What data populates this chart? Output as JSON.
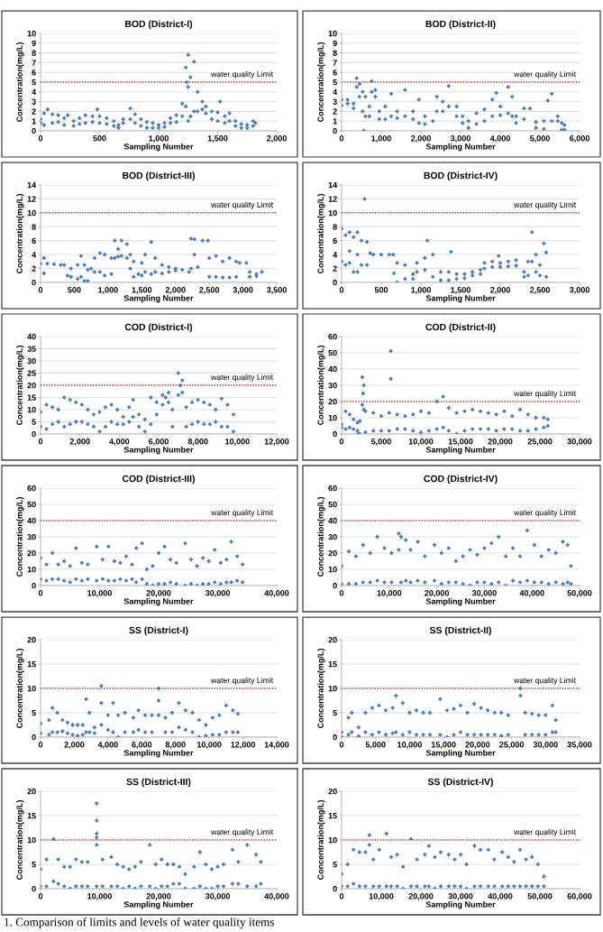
{
  "chart_data": [
    {
      "type": "scatter",
      "title": "BOD (District-I)",
      "xlabel": "Sampling Number",
      "ylabel": "Concentration(mg/L)",
      "color": "#4a7ebb",
      "marker": "diamond",
      "grid": "y",
      "xlim": [
        0,
        2000
      ],
      "xticks": [
        0,
        500,
        {
          "value": 1000,
          "label": "1,000"
        },
        {
          "value": 1500,
          "label": "1,500"
        },
        {
          "value": 2000,
          "label": "2,000"
        }
      ],
      "ylim": [
        0,
        10
      ],
      "yticks": [
        0,
        1,
        2,
        3,
        4,
        5,
        6,
        7,
        8,
        9,
        10
      ],
      "ref_lines": [
        {
          "axis": "y",
          "value": 5,
          "label": "water quality Limit",
          "color": "#c0504d",
          "line_style": "dotted"
        }
      ],
      "x": [
        0,
        0,
        30,
        30,
        100,
        100,
        150,
        150,
        200,
        200,
        280,
        280,
        330,
        330,
        380,
        380,
        440,
        440,
        500,
        500,
        560,
        560,
        620,
        620,
        660,
        660,
        700,
        700,
        760,
        760,
        800,
        800,
        850,
        850,
        900,
        900,
        950,
        950,
        1000,
        1000,
        1050,
        1050,
        1100,
        1100,
        1150,
        1150,
        1200,
        1200,
        1230,
        1230,
        1250,
        1250,
        1270,
        1270,
        1300,
        1300,
        1330,
        1330,
        1370,
        1370,
        1400,
        1400,
        1450,
        1450,
        1500,
        1500,
        1560,
        1560,
        1600,
        1600,
        1650,
        1650,
        1700,
        1700,
        1750,
        1750,
        1800,
        1800,
        60,
        230,
        480,
        1520,
        1820,
        1250,
        1240
      ],
      "values": [
        1.2,
        0.8,
        1.8,
        0.6,
        1.7,
        0.8,
        1.6,
        0.9,
        1.3,
        0.6,
        1.0,
        0.5,
        1.3,
        0.7,
        1.6,
        0.8,
        1.5,
        0.9,
        1.5,
        0.8,
        1.3,
        0.7,
        1.0,
        0.5,
        0.6,
        0.3,
        1.2,
        0.8,
        2.3,
        1.2,
        1.7,
        0.8,
        1.2,
        0.5,
        0.9,
        0.3,
        0.8,
        0.3,
        0.6,
        0.3,
        0.8,
        0.4,
        1.3,
        0.8,
        1.6,
        0.9,
        2.8,
        1.5,
        6.5,
        2.5,
        7.8,
        1.0,
        5.5,
        1.5,
        7.1,
        2.0,
        4.0,
        2.0,
        3.0,
        2.2,
        2.5,
        1.8,
        2.0,
        1.2,
        1.9,
        1.0,
        1.5,
        0.8,
        1.8,
        1.0,
        1.0,
        0.5,
        0.7,
        0.3,
        0.6,
        0.3,
        1.0,
        0.5,
        2.2,
        1.6,
        2.2,
        3.0,
        0.8,
        4.5,
        5.0
      ]
    },
    {
      "type": "scatter",
      "title": "BOD (District-II)",
      "xlabel": "Sampling Number",
      "ylabel": "Concentration(mg/L)",
      "color": "#4a7ebb",
      "marker": "diamond",
      "grid": "y",
      "xlim": [
        0,
        6000
      ],
      "xticks": [
        0,
        {
          "value": 1000,
          "label": "1,000"
        },
        {
          "value": 2000,
          "label": "2,000"
        },
        {
          "value": 3000,
          "label": "3,000"
        },
        {
          "value": 4000,
          "label": "4,000"
        },
        {
          "value": 5000,
          "label": "5,000"
        },
        {
          "value": 6000,
          "label": "6,000"
        }
      ],
      "ylim": [
        0,
        10
      ],
      "yticks": [
        0,
        1,
        2,
        3,
        4,
        5,
        6,
        7,
        8,
        9,
        10
      ],
      "ref_lines": [
        {
          "axis": "y",
          "value": 5,
          "label": "water quality Limit",
          "color": "#c0504d",
          "line_style": "dotted"
        }
      ],
      "x": [
        0,
        0,
        150,
        150,
        300,
        300,
        380,
        380,
        450,
        450,
        530,
        530,
        600,
        600,
        700,
        700,
        760,
        760,
        850,
        850,
        950,
        950,
        1100,
        1100,
        1250,
        1250,
        1400,
        1400,
        1600,
        1600,
        1800,
        1800,
        1950,
        1950,
        2100,
        2100,
        2400,
        2400,
        2550,
        2550,
        2700,
        2700,
        2900,
        2900,
        3050,
        3050,
        3200,
        3200,
        3400,
        3400,
        3600,
        3600,
        3800,
        3800,
        4000,
        4000,
        4200,
        4200,
        4300,
        4300,
        4400,
        4400,
        4600,
        4600,
        4900,
        4900,
        5100,
        5100,
        5300,
        5300,
        5450,
        5450,
        5550,
        5550,
        5620,
        5620,
        560,
        2300,
        3900,
        4750,
        5200
      ],
      "values": [
        3.2,
        2.6,
        3.2,
        2.8,
        2.8,
        2.3,
        5.4,
        4.5,
        4.8,
        3.5,
        4.0,
        2.0,
        3.5,
        1.5,
        2.5,
        1.5,
        5.1,
        4.0,
        4.2,
        3.5,
        2.0,
        1.2,
        2.5,
        1.2,
        3.8,
        1.5,
        2.0,
        1.3,
        4.2,
        1.5,
        2.0,
        1.2,
        3.2,
        0.8,
        1.5,
        0.7,
        3.5,
        2.0,
        3.0,
        2.0,
        4.6,
        2.5,
        2.5,
        1.5,
        1.5,
        0.8,
        1.0,
        0.3,
        1.8,
        0.7,
        2.2,
        1.0,
        3.2,
        1.5,
        2.5,
        1.6,
        4.5,
        1.8,
        3.5,
        1.5,
        1.5,
        0.8,
        2.3,
        1.2,
        0.9,
        0.3,
        1.0,
        0.2,
        3.8,
        1.0,
        1.5,
        1.0,
        0.8,
        0.1,
        0.6,
        0.1,
        0.0,
        1.0,
        3.9,
        2.3,
        3.1
      ]
    },
    {
      "type": "scatter",
      "title": "BOD (District-III)",
      "xlabel": "Sampling Number",
      "ylabel": "Concentration(mg/L)",
      "color": "#4a7ebb",
      "marker": "diamond",
      "grid": "y",
      "xlim": [
        0,
        3500
      ],
      "xticks": [
        0,
        500,
        {
          "value": 1000,
          "label": "1,000"
        },
        {
          "value": 1500,
          "label": "1,500"
        },
        {
          "value": 2000,
          "label": "2,000"
        },
        {
          "value": 2500,
          "label": "2,500"
        },
        {
          "value": 3000,
          "label": "3,000"
        },
        {
          "value": 3500,
          "label": "3,500"
        }
      ],
      "ylim": [
        0,
        14
      ],
      "yticks": [
        0,
        2,
        4,
        6,
        8,
        10,
        12,
        14
      ],
      "ref_lines": [
        {
          "axis": "y",
          "value": 10,
          "label": "water quality Limit",
          "color": "#c0504d",
          "line_style": "dotted"
        }
      ],
      "x": [
        50,
        50,
        450,
        450,
        550,
        550,
        600,
        600,
        650,
        650,
        700,
        700,
        800,
        800,
        880,
        880,
        950,
        950,
        1050,
        1050,
        1100,
        1100,
        1150,
        1150,
        1200,
        1200,
        1280,
        1280,
        1330,
        1330,
        1380,
        1380,
        1500,
        1500,
        1550,
        1550,
        1640,
        1640,
        1700,
        1700,
        1800,
        1800,
        1900,
        1900,
        2000,
        2000,
        2230,
        2230,
        2280,
        2280,
        2500,
        2500,
        2600,
        2600,
        2700,
        2700,
        2800,
        2800,
        2900,
        2900,
        3100,
        3100,
        3200,
        3200,
        0,
        100,
        200,
        300,
        350,
        400,
        750,
        1450,
        2100,
        2200,
        2330,
        2400,
        2480,
        2950,
        3050,
        3280
      ],
      "values": [
        3.5,
        1.3,
        2.0,
        0.8,
        2.5,
        0.5,
        3.8,
        0.8,
        2.5,
        0.2,
        1.8,
        0.2,
        3.5,
        1.5,
        4.2,
        1.5,
        4.0,
        1.0,
        3.5,
        1.2,
        6.0,
        3.5,
        4.8,
        3.7,
        6.0,
        3.8,
        5.5,
        3.5,
        4.0,
        2.0,
        3.0,
        0.8,
        2.8,
        1.0,
        4.0,
        1.5,
        5.8,
        1.2,
        3.5,
        1.5,
        2.5,
        1.3,
        2.2,
        1.5,
        2.0,
        1.7,
        6.3,
        2.0,
        6.2,
        4.0,
        3.5,
        0.8,
        3.8,
        0.8,
        3.0,
        0.7,
        3.5,
        0.7,
        3.0,
        0.8,
        1.5,
        0.8,
        1.2,
        0.9,
        2.7,
        2.7,
        2.6,
        2.5,
        2.5,
        1.0,
        2.0,
        1.2,
        1.8,
        1.5,
        2.2,
        6.0,
        6.0,
        2.8,
        2.8,
        1.5
      ]
    },
    {
      "type": "scatter",
      "title": "BOD (District-IV)",
      "xlabel": "Sampling Number",
      "ylabel": "Concentration(mg/L)",
      "color": "#4a7ebb",
      "marker": "diamond",
      "grid": "y",
      "xlim": [
        0,
        3000
      ],
      "xticks": [
        0,
        500,
        {
          "value": 1000,
          "label": "1,000"
        },
        {
          "value": 1500,
          "label": "1,500"
        },
        {
          "value": 2000,
          "label": "2,000"
        },
        {
          "value": 2500,
          "label": "2,500"
        },
        {
          "value": 3000,
          "label": "3,000"
        }
      ],
      "ylim": [
        0,
        14
      ],
      "yticks": [
        0,
        2,
        4,
        6,
        8,
        10,
        12,
        14
      ],
      "ref_lines": [
        {
          "axis": "y",
          "value": 10,
          "label": "water quality Limit",
          "color": "#c0504d",
          "line_style": "dotted"
        }
      ],
      "x": [
        0,
        0,
        50,
        50,
        100,
        100,
        150,
        150,
        200,
        200,
        250,
        250,
        320,
        320,
        700,
        700,
        800,
        800,
        900,
        900,
        950,
        950,
        1050,
        1050,
        1150,
        1150,
        1250,
        1250,
        1350,
        1350,
        1450,
        1450,
        1550,
        1550,
        1650,
        1650,
        1750,
        1750,
        1800,
        1800,
        1900,
        1900,
        2000,
        2000,
        2100,
        2100,
        2200,
        2200,
        2300,
        2300,
        2350,
        2350,
        2400,
        2400,
        2450,
        2450,
        2500,
        2500,
        2580,
        2580,
        290,
        360,
        400,
        500,
        600,
        650,
        660,
        1080,
        1380,
        1980,
        2550,
        100,
        200
      ],
      "values": [
        7.7,
        3.0,
        6.8,
        2.5,
        7.2,
        2.8,
        6.5,
        1.5,
        7.2,
        1.5,
        6.0,
        2.5,
        5.8,
        2.5,
        2.8,
        0.0,
        2.5,
        0.5,
        1.2,
        0.5,
        2.8,
        1.5,
        3.5,
        1.8,
        4.0,
        0.8,
        1.5,
        0.3,
        1.5,
        0.3,
        1.2,
        0.5,
        1.2,
        0.6,
        1.5,
        1.0,
        1.8,
        1.2,
        2.8,
        2.0,
        3.0,
        2.2,
        2.8,
        2.2,
        3.0,
        2.3,
        3.2,
        2.4,
        1.5,
        0.8,
        3.0,
        1.0,
        7.2,
        3.0,
        4.0,
        1.5,
        2.5,
        1.0,
        4.3,
        0.8,
        12.0,
        4.2,
        4.0,
        4.0,
        4.0,
        4.0,
        1.3,
        6.0,
        4.4,
        3.8,
        5.6,
        4.5,
        4.0
      ]
    },
    {
      "type": "scatter",
      "title": "COD (District-I)",
      "xlabel": "Sampling Number",
      "ylabel": "Concentration(mg/L)",
      "color": "#4a7ebb",
      "marker": "diamond",
      "grid": "y",
      "xlim": [
        0,
        12000
      ],
      "xticks": [
        0,
        {
          "value": 2000,
          "label": "2,000"
        },
        {
          "value": 4000,
          "label": "4,000"
        },
        {
          "value": 6000,
          "label": "6,000"
        },
        {
          "value": 8000,
          "label": "8,000"
        },
        {
          "value": 10000,
          "label": "10,000"
        },
        {
          "value": 12000,
          "label": "12,000"
        }
      ],
      "ylim": [
        0,
        40
      ],
      "yticks": [
        0,
        5,
        10,
        15,
        20,
        25,
        30,
        35,
        40
      ],
      "ref_lines": [
        {
          "axis": "y",
          "value": 20,
          "label": "water quality Limit",
          "color": "#c0504d",
          "line_style": "dotted"
        }
      ],
      "x": [
        0,
        0,
        300,
        300,
        600,
        600,
        900,
        900,
        1200,
        1200,
        1500,
        1500,
        1800,
        1800,
        2100,
        2100,
        2400,
        2400,
        2700,
        2700,
        3000,
        3000,
        3300,
        3300,
        3600,
        3600,
        3900,
        3900,
        4200,
        4200,
        4500,
        4500,
        4700,
        4700,
        5000,
        5000,
        5300,
        5300,
        5600,
        5600,
        5900,
        5900,
        6200,
        6200,
        6500,
        6500,
        6700,
        6700,
        7000,
        7000,
        7200,
        7200,
        7400,
        7400,
        7700,
        7700,
        8000,
        8000,
        8300,
        8300,
        8600,
        8600,
        8900,
        8900,
        9200,
        9200,
        9500,
        9500,
        9800,
        9800,
        7100,
        6350
      ],
      "values": [
        9,
        3,
        12,
        2,
        11,
        4,
        10,
        5,
        15,
        3,
        14,
        4,
        13,
        5,
        12,
        5,
        10,
        4,
        8,
        3,
        9,
        1,
        11,
        3,
        12,
        5,
        10,
        4,
        7,
        4,
        11,
        5,
        14,
        7,
        8,
        3,
        6,
        1,
        15,
        4,
        13,
        8,
        16,
        12,
        17,
        13,
        10,
        3,
        25,
        16,
        22,
        17,
        11,
        3,
        13,
        4,
        14,
        5,
        13,
        4,
        12,
        4,
        10,
        5,
        14.5,
        3,
        12,
        3,
        8,
        1,
        20,
        15
      ]
    },
    {
      "type": "scatter",
      "title": "COD (District-II)",
      "xlabel": "Sampling Number",
      "ylabel": "Concentration(mg/L)",
      "color": "#4a7ebb",
      "marker": "diamond",
      "grid": "y",
      "xlim": [
        0,
        30000
      ],
      "xticks": [
        0,
        {
          "value": 5000,
          "label": "5,000"
        },
        {
          "value": 10000,
          "label": "10,000"
        },
        {
          "value": 15000,
          "label": "15,000"
        },
        {
          "value": 20000,
          "label": "20,000"
        },
        {
          "value": 25000,
          "label": "25,000"
        },
        {
          "value": 30000,
          "label": "30,000"
        }
      ],
      "ylim": [
        0,
        60
      ],
      "yticks": [
        0,
        10,
        20,
        30,
        40,
        50,
        60
      ],
      "ref_lines": [
        {
          "axis": "y",
          "value": 20,
          "label": "water quality Limit",
          "color": "#c0504d",
          "line_style": "dotted"
        }
      ],
      "x": [
        0,
        0,
        500,
        500,
        1000,
        1000,
        1500,
        1500,
        2000,
        2000,
        2300,
        2300,
        2600,
        2600,
        2800,
        2800,
        3000,
        3000,
        4000,
        4000,
        5000,
        5000,
        6000,
        6000,
        7000,
        7000,
        8000,
        8000,
        9000,
        9000,
        10000,
        10000,
        11000,
        11000,
        12000,
        12000,
        12800,
        12800,
        13500,
        13500,
        14500,
        14500,
        15500,
        15500,
        16500,
        16500,
        17500,
        17500,
        18500,
        18500,
        19500,
        19500,
        20500,
        20500,
        21500,
        21500,
        22500,
        22500,
        23500,
        23500,
        24500,
        24500,
        25500,
        25500,
        26000,
        26000,
        6200,
        6200,
        2100,
        2700
      ],
      "values": [
        6,
        4,
        14,
        3,
        12,
        4,
        9,
        3,
        7,
        2,
        8,
        0,
        35,
        18,
        30,
        15,
        14,
        1,
        13,
        2,
        11,
        2,
        13,
        2,
        12,
        3,
        11,
        3,
        12,
        2,
        14,
        1,
        13,
        2,
        20,
        3,
        23,
        4,
        16,
        2,
        13,
        0,
        14,
        2,
        15,
        3,
        14,
        3,
        13,
        3,
        12,
        2,
        14,
        3,
        11,
        3,
        15,
        2,
        12,
        2,
        10,
        3,
        10,
        4,
        9,
        5,
        51,
        34,
        0,
        25
      ]
    },
    {
      "type": "scatter",
      "title": "COD (District-III)",
      "xlabel": "Sampling Number",
      "ylabel": "Concentration(mg/L)",
      "color": "#4a7ebb",
      "marker": "diamond",
      "grid": "y",
      "xlim": [
        0,
        40000
      ],
      "xticks": [
        0,
        {
          "value": 10000,
          "label": "10,000"
        },
        {
          "value": 20000,
          "label": "20,000"
        },
        {
          "value": 30000,
          "label": "30,000"
        },
        {
          "value": 40000,
          "label": "40,000"
        }
      ],
      "ylim": [
        0,
        60
      ],
      "yticks": [
        0,
        10,
        20,
        30,
        40,
        50,
        60
      ],
      "ref_lines": [
        {
          "axis": "y",
          "value": 40,
          "label": "water quality Limit",
          "color": "#c0504d",
          "line_style": "dotted"
        }
      ],
      "x": [
        0,
        0,
        1000,
        1000,
        2000,
        2000,
        3000,
        3000,
        4000,
        4000,
        5000,
        5000,
        6000,
        6000,
        7000,
        7000,
        8000,
        8000,
        9500,
        9500,
        10500,
        10500,
        11500,
        11500,
        12500,
        12500,
        13500,
        13500,
        14500,
        14500,
        15500,
        15500,
        16200,
        16200,
        17200,
        17200,
        18000,
        18000,
        19000,
        19000,
        20000,
        20000,
        21000,
        21000,
        22000,
        22000,
        23000,
        23000,
        24500,
        24500,
        25500,
        25500,
        26500,
        26500,
        27500,
        27500,
        28500,
        28500,
        29500,
        29500,
        30500,
        30500,
        31500,
        31500,
        32300,
        32300,
        33300,
        33300,
        34200,
        34200
      ],
      "values": [
        17,
        4,
        13,
        3,
        20,
        4,
        13,
        4,
        15,
        3,
        12,
        2,
        23,
        4,
        14,
        3,
        13,
        4,
        24,
        3,
        16,
        4,
        24,
        3,
        15,
        3,
        14,
        4,
        18,
        3,
        13,
        4,
        23,
        2,
        26,
        4,
        10,
        1,
        12,
        0,
        20,
        1,
        24,
        1,
        16,
        2,
        14,
        1,
        26,
        0,
        16,
        1,
        12,
        0,
        17,
        1,
        15,
        1,
        22,
        2,
        14,
        1,
        16,
        2,
        27,
        2,
        18,
        3,
        13,
        2
      ]
    },
    {
      "type": "scatter",
      "title": "COD (District-IV)",
      "xlabel": "Sampling Number",
      "ylabel": "Concentration(mg/L)",
      "color": "#4a7ebb",
      "marker": "diamond",
      "grid": "y",
      "xlim": [
        0,
        50000
      ],
      "xticks": [
        0,
        {
          "value": 10000,
          "label": "10,000"
        },
        {
          "value": 20000,
          "label": "20,000"
        },
        {
          "value": 30000,
          "label": "30,000"
        },
        {
          "value": 40000,
          "label": "40,000"
        },
        {
          "value": 50000,
          "label": "50,000"
        }
      ],
      "ylim": [
        0,
        60
      ],
      "yticks": [
        0,
        10,
        20,
        30,
        40,
        50,
        60
      ],
      "ref_lines": [
        {
          "axis": "y",
          "value": 40,
          "label": "water quality Limit",
          "color": "#c0504d",
          "line_style": "dotted"
        }
      ],
      "x": [
        0,
        0,
        1500,
        1500,
        3000,
        3000,
        4500,
        4500,
        6000,
        6000,
        7500,
        7500,
        9000,
        9000,
        10500,
        10500,
        12000,
        12000,
        12500,
        12500,
        13500,
        13500,
        14500,
        14500,
        16000,
        16000,
        17500,
        17500,
        19500,
        19500,
        21000,
        21000,
        22500,
        22500,
        24000,
        24000,
        25500,
        25500,
        27000,
        27000,
        28500,
        28500,
        30000,
        30000,
        31500,
        31500,
        33000,
        33000,
        34500,
        34500,
        36000,
        36000,
        37500,
        37500,
        39000,
        39000,
        40500,
        40500,
        42000,
        42000,
        43500,
        43500,
        45000,
        45000,
        46500,
        46500,
        47500,
        47500,
        48200,
        48200
      ],
      "values": [
        12,
        1,
        21,
        1,
        18,
        1,
        25,
        2,
        20,
        2,
        30,
        3,
        23,
        2,
        20,
        2,
        32,
        22,
        30,
        2,
        28,
        3,
        22,
        2,
        27,
        3,
        18,
        2,
        25,
        3,
        20,
        1,
        23,
        2,
        15,
        2,
        18,
        1,
        22,
        0,
        19,
        2,
        23,
        2,
        26,
        1,
        30,
        2,
        18,
        0,
        23,
        3,
        18,
        2,
        34,
        3,
        25,
        2,
        18,
        2,
        22,
        1,
        20,
        2,
        27,
        1,
        25,
        2,
        12,
        1
      ]
    },
    {
      "type": "scatter",
      "title": "SS (District-I)",
      "xlabel": "Sampling Number",
      "ylabel": "Concentration(mg/L)",
      "color": "#4a7ebb",
      "marker": "diamond",
      "grid": "y",
      "xlim": [
        0,
        14000
      ],
      "xticks": [
        0,
        {
          "value": 2000,
          "label": "2,000"
        },
        {
          "value": 4000,
          "label": "4,000"
        },
        {
          "value": 6000,
          "label": "6,000"
        },
        {
          "value": 8000,
          "label": "8,000"
        },
        {
          "value": 10000,
          "label": "10,000"
        },
        {
          "value": 12000,
          "label": "12,000"
        },
        {
          "value": 14000,
          "label": "14,000"
        }
      ],
      "ylim": [
        0,
        20
      ],
      "yticks": [
        0,
        5,
        10,
        15,
        20
      ],
      "ref_lines": [
        {
          "axis": "y",
          "value": 10,
          "label": "water quality Limit",
          "color": "#c0504d",
          "line_style": "dotted"
        }
      ],
      "x": [
        0,
        0,
        500,
        500,
        700,
        700,
        1000,
        1000,
        1300,
        1300,
        1600,
        1600,
        1900,
        1900,
        2200,
        2200,
        2500,
        2500,
        2700,
        2700,
        2900,
        2900,
        3200,
        3200,
        3600,
        3600,
        4000,
        4000,
        4300,
        4300,
        4600,
        4600,
        5000,
        5000,
        5500,
        5500,
        5800,
        5800,
        6200,
        6200,
        6600,
        6600,
        7000,
        7000,
        7400,
        7400,
        7800,
        7800,
        8200,
        8200,
        8600,
        8600,
        9000,
        9000,
        9400,
        9400,
        9800,
        9800,
        10200,
        10200,
        10600,
        10600,
        11000,
        11000,
        11400,
        11400,
        11700,
        11700,
        3600,
        7000
      ],
      "values": [
        2.8,
        0.8,
        3.5,
        0.5,
        6.0,
        1.0,
        5.0,
        1.0,
        3.5,
        1.2,
        3.0,
        0.8,
        2.5,
        0.5,
        2.5,
        0.3,
        2.5,
        0.5,
        7.8,
        1.0,
        5.0,
        1.0,
        2.0,
        0.8,
        7.0,
        2.5,
        4.5,
        1.5,
        7.0,
        1.0,
        4.5,
        0.0,
        5.0,
        1.0,
        4.0,
        1.0,
        5.5,
        1.5,
        4.5,
        1.0,
        4.5,
        1.0,
        10.0,
        4.5,
        4.0,
        1.0,
        5.0,
        1.0,
        7.0,
        2.0,
        5.5,
        1.5,
        5.0,
        1.0,
        3.5,
        0.0,
        2.5,
        0.3,
        4.0,
        0.5,
        4.5,
        0.5,
        6.5,
        1.0,
        5.5,
        1.0,
        4.8,
        1.0,
        10.5,
        7.5
      ]
    },
    {
      "type": "scatter",
      "title": "SS (District-II)",
      "xlabel": "Sampling Number",
      "ylabel": "Concentration(mg/L)",
      "color": "#4a7ebb",
      "marker": "diamond",
      "grid": "y",
      "xlim": [
        0,
        35000
      ],
      "xticks": [
        0,
        {
          "value": 5000,
          "label": "5,000"
        },
        {
          "value": 10000,
          "label": "10,000"
        },
        {
          "value": 15000,
          "label": "15,000"
        },
        {
          "value": 20000,
          "label": "20,000"
        },
        {
          "value": 25000,
          "label": "25,000"
        },
        {
          "value": 30000,
          "label": "30,000"
        },
        {
          "value": 35000,
          "label": "35,000"
        }
      ],
      "ylim": [
        0,
        20
      ],
      "yticks": [
        0,
        5,
        10,
        15,
        20
      ],
      "ref_lines": [
        {
          "axis": "y",
          "value": 10,
          "label": "water quality Limit",
          "color": "#c0504d",
          "line_style": "dotted"
        }
      ],
      "x": [
        0,
        0,
        1000,
        1000,
        1500,
        1500,
        2500,
        2500,
        3500,
        3500,
        4500,
        4500,
        5500,
        5500,
        6500,
        6500,
        7500,
        7500,
        8000,
        8000,
        9000,
        9000,
        10000,
        10000,
        11000,
        11000,
        12000,
        12000,
        13000,
        13000,
        14500,
        14500,
        15500,
        15500,
        16500,
        16500,
        17500,
        17500,
        18500,
        18500,
        19500,
        19500,
        20500,
        20500,
        21500,
        21500,
        22500,
        22500,
        23500,
        23500,
        24500,
        24500,
        26300,
        26300,
        27000,
        27000,
        28000,
        28000,
        29000,
        29000,
        30000,
        30000,
        31000,
        31000,
        31500,
        31500
      ],
      "values": [
        1.0,
        0.0,
        4.0,
        0.5,
        5.0,
        1.0,
        2.0,
        0.2,
        5.0,
        1.0,
        6.0,
        0.5,
        6.5,
        1.0,
        5.5,
        0.5,
        6.0,
        0.8,
        8.5,
        1.0,
        7.0,
        0.5,
        5.0,
        1.0,
        5.5,
        0.5,
        5.0,
        0.5,
        5.0,
        0.5,
        7.8,
        0.5,
        5.5,
        0.0,
        5.8,
        0.5,
        6.5,
        1.0,
        5.0,
        0.5,
        6.8,
        0.5,
        6.0,
        0.5,
        5.5,
        0.5,
        5.0,
        0.5,
        5.0,
        0.3,
        4.5,
        0.5,
        10.0,
        8.5,
        5.0,
        0.5,
        4.8,
        0.5,
        4.5,
        0.5,
        4.5,
        0.5,
        6.5,
        1.0,
        3.5,
        1.0
      ]
    },
    {
      "type": "scatter",
      "title": "SS (District-III)",
      "xlabel": "Sampling Number",
      "ylabel": "Concentration(mg/L)",
      "color": "#4a7ebb",
      "marker": "diamond",
      "grid": "y",
      "xlim": [
        0,
        40000
      ],
      "xticks": [
        0,
        {
          "value": 10000,
          "label": "10,000"
        },
        {
          "value": 20000,
          "label": "20,000"
        },
        {
          "value": 30000,
          "label": "30,000"
        },
        {
          "value": 40000,
          "label": "40,000"
        }
      ],
      "ylim": [
        0,
        20
      ],
      "yticks": [
        0,
        5,
        10,
        15,
        20
      ],
      "ref_lines": [
        {
          "axis": "y",
          "value": 10,
          "label": "water quality Limit",
          "color": "#c0504d",
          "line_style": "dotted"
        }
      ],
      "x": [
        0,
        0,
        1000,
        1000,
        2200,
        2200,
        3000,
        3000,
        4000,
        4000,
        5000,
        5000,
        6000,
        6000,
        7000,
        7000,
        8000,
        8000,
        9500,
        9500,
        10500,
        10500,
        12000,
        12000,
        13000,
        13000,
        14000,
        14000,
        15000,
        15000,
        16000,
        16000,
        17000,
        17000,
        18500,
        18500,
        19500,
        19500,
        20500,
        20500,
        21500,
        21500,
        22500,
        22500,
        23500,
        23500,
        24500,
        24500,
        26000,
        26000,
        27000,
        27000,
        28000,
        28000,
        29000,
        29000,
        30000,
        30000,
        31000,
        31000,
        32500,
        32500,
        33500,
        33500,
        35000,
        35000,
        36500,
        36500,
        37300,
        37300,
        9500,
        9500,
        9500,
        9500
      ],
      "values": [
        4.0,
        0.5,
        6.0,
        0.5,
        10.2,
        1.5,
        6.0,
        1.0,
        4.5,
        0.5,
        4.5,
        0.0,
        6.0,
        0.5,
        5.5,
        0.5,
        5.5,
        0.5,
        17.5,
        0.5,
        6.0,
        0.5,
        6.5,
        0.5,
        5.0,
        0.5,
        4.5,
        0.0,
        4.0,
        0.5,
        4.5,
        0.0,
        5.5,
        0.5,
        9.0,
        0.5,
        5.0,
        0.0,
        6.0,
        0.5,
        5.0,
        0.5,
        5.0,
        1.0,
        4.5,
        1.0,
        3.0,
        0.0,
        4.5,
        0.0,
        7.5,
        0.5,
        5.0,
        0.0,
        4.0,
        0.0,
        4.5,
        0.5,
        5.0,
        0.5,
        8.0,
        1.0,
        5.5,
        1.0,
        9.0,
        0.5,
        7.0,
        0.5,
        5.5,
        1.0,
        14.0,
        11.3,
        10.5,
        9.0
      ]
    },
    {
      "type": "scatter",
      "title": "SS (District-IV)",
      "xlabel": "Sampling Number",
      "ylabel": "Concentration(mg/L)",
      "color": "#4a7ebb",
      "marker": "diamond",
      "grid": "y",
      "xlim": [
        0,
        60000
      ],
      "xticks": [
        0,
        {
          "value": 10000,
          "label": "10,000"
        },
        {
          "value": 20000,
          "label": "20,000"
        },
        {
          "value": 30000,
          "label": "30,000"
        },
        {
          "value": 40000,
          "label": "40,000"
        },
        {
          "value": 50000,
          "label": "50,000"
        },
        {
          "value": 60000,
          "label": "60,000"
        }
      ],
      "ylim": [
        0,
        20
      ],
      "yticks": [
        0,
        5,
        10,
        15,
        20
      ],
      "ref_lines": [
        {
          "axis": "y",
          "value": 10,
          "label": "water quality Limit",
          "color": "#c0504d",
          "line_style": "dotted"
        }
      ],
      "annotations": [
        "1. Comparison of limits and levels of water quality items"
      ],
      "x": [
        0,
        0,
        1500,
        1500,
        3000,
        3000,
        4500,
        4500,
        6000,
        6000,
        7000,
        7000,
        8000,
        8000,
        9500,
        9500,
        11300,
        11300,
        12500,
        12500,
        14000,
        14000,
        15500,
        15500,
        17500,
        17500,
        19000,
        19000,
        21000,
        21000,
        22000,
        22000,
        23500,
        23500,
        25000,
        25000,
        27000,
        27000,
        28500,
        28500,
        30000,
        30000,
        31500,
        31500,
        33500,
        33500,
        35000,
        35000,
        37000,
        37000,
        38500,
        38500,
        40500,
        40500,
        42000,
        42000,
        43500,
        43500,
        45000,
        45000,
        46500,
        46500,
        48000,
        48000,
        49500,
        49500,
        51000,
        51000
      ],
      "values": [
        3.0,
        0.5,
        5.0,
        0.5,
        8.0,
        1.0,
        7.5,
        0.5,
        7.5,
        0.5,
        11.0,
        9.0,
        6.0,
        0.5,
        8.0,
        0.5,
        11.3,
        0.5,
        6.5,
        0.5,
        7.0,
        0.5,
        4.5,
        0.0,
        10.2,
        0.5,
        6.0,
        0.5,
        7.0,
        0.5,
        8.8,
        0.5,
        6.5,
        0.0,
        7.5,
        0.5,
        7.0,
        0.5,
        6.0,
        0.5,
        7.0,
        0.5,
        5.0,
        0.0,
        8.8,
        0.5,
        8.0,
        0.5,
        8.0,
        0.5,
        6.0,
        0.5,
        7.5,
        0.5,
        6.5,
        0.5,
        5.5,
        0.5,
        8.0,
        0.5,
        6.0,
        0.5,
        6.5,
        0.5,
        5.0,
        0.5,
        2.5,
        0.5
      ]
    }
  ]
}
